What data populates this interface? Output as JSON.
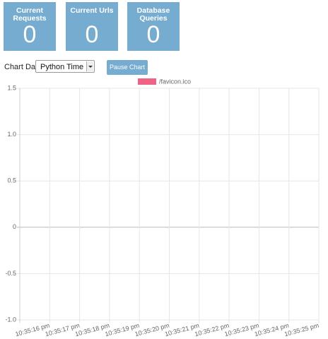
{
  "cards": [
    {
      "label": "Current Requests",
      "value": 0
    },
    {
      "label": "Current Urls",
      "value": 0
    },
    {
      "label": "Database Queries",
      "value": 0
    }
  ],
  "controls": {
    "chart_label": "Chart Data",
    "select": "Python Time",
    "button": "Pause Chart"
  },
  "chart_data": {
    "type": "line",
    "categories": [
      "10:35:16 pm",
      "10:35:17 pm",
      "10:35:18 pm",
      "10:35:19 pm",
      "10:35:20 pm",
      "10:35:21 pm",
      "10:35:22 pm",
      "10:35:23 pm",
      "10:35:24 pm",
      "10:35:25 pm"
    ],
    "series": [
      {
        "name": "/favicon.ico",
        "color": "#f06384",
        "values": [
          null,
          null,
          null,
          null,
          null,
          null,
          null,
          null,
          null,
          null
        ]
      }
    ],
    "ylim": [
      -1,
      1.5
    ],
    "yticks": [
      {
        "value": -1,
        "label": "-1.0"
      },
      -0.5,
      0,
      0.5,
      {
        "value": 1,
        "label": "1.0"
      },
      1.5
    ],
    "grid": true,
    "legend": "top"
  }
}
